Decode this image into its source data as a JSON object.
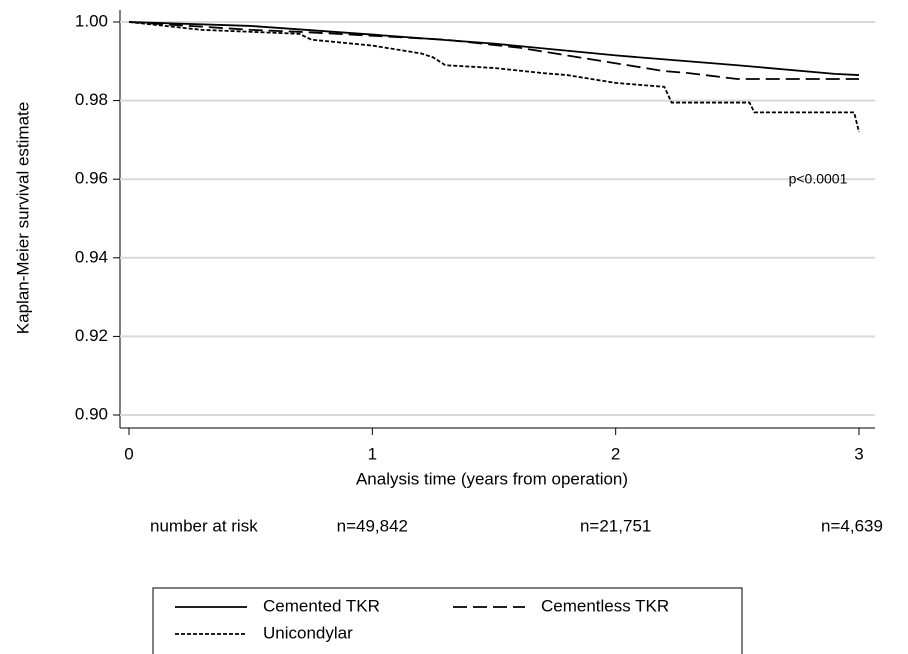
{
  "chart_data": {
    "type": "line",
    "x_label": "Analysis time (years from operation)",
    "y_label": "Kaplan-Meier survival estimate",
    "xlim": [
      0,
      3
    ],
    "ylim": [
      0.9,
      1.0
    ],
    "xticks": [
      0,
      1,
      2,
      3
    ],
    "yticks": [
      {
        "value": 0.9,
        "label": "0.90"
      },
      {
        "value": 0.92,
        "label": "0.92"
      },
      {
        "value": 0.94,
        "label": "0.94"
      },
      {
        "value": 0.96,
        "label": "0.96"
      },
      {
        "value": 0.98,
        "label": "0.98"
      },
      {
        "value": 1.0,
        "label": "1.00"
      }
    ],
    "grid": true,
    "annotation": "p<0.0001",
    "at_risk": {
      "label": "number at risk",
      "values": [
        null,
        49842,
        21751,
        4639
      ],
      "value_labels": [
        null,
        "n=49,842",
        "n=21,751",
        "n=4,639"
      ]
    },
    "series": [
      {
        "name": "Cemented TKR",
        "color": "#000000",
        "dash": "solid",
        "x": [
          0,
          0.5,
          1,
          1.5,
          2,
          2.5,
          2.9,
          3
        ],
        "values": [
          1.0,
          0.999,
          0.9968,
          0.9945,
          0.9915,
          0.989,
          0.9868,
          0.9865
        ]
      },
      {
        "name": "Cementless TKR",
        "color": "#000000",
        "dash": "dashed",
        "x": [
          0,
          0.5,
          0.7,
          1,
          1.3,
          1.6,
          1.9,
          2.1,
          2.2,
          2.3,
          2.5,
          3
        ],
        "values": [
          1.0,
          0.998,
          0.9975,
          0.9965,
          0.9955,
          0.9935,
          0.9905,
          0.9885,
          0.9875,
          0.987,
          0.9855,
          0.9855
        ]
      },
      {
        "name": "Unicondylar",
        "color": "#000000",
        "dash": "dotted",
        "x": [
          0,
          0.3,
          0.7,
          0.75,
          1,
          1.1,
          1.2,
          1.25,
          1.3,
          1.5,
          1.7,
          1.8,
          2,
          2.2,
          2.23,
          2.55,
          2.57,
          2.98,
          3
        ],
        "values": [
          1.0,
          0.998,
          0.997,
          0.9955,
          0.994,
          0.993,
          0.992,
          0.991,
          0.989,
          0.9883,
          0.987,
          0.9865,
          0.9845,
          0.9835,
          0.9795,
          0.9795,
          0.977,
          0.977,
          0.972
        ]
      }
    ]
  }
}
